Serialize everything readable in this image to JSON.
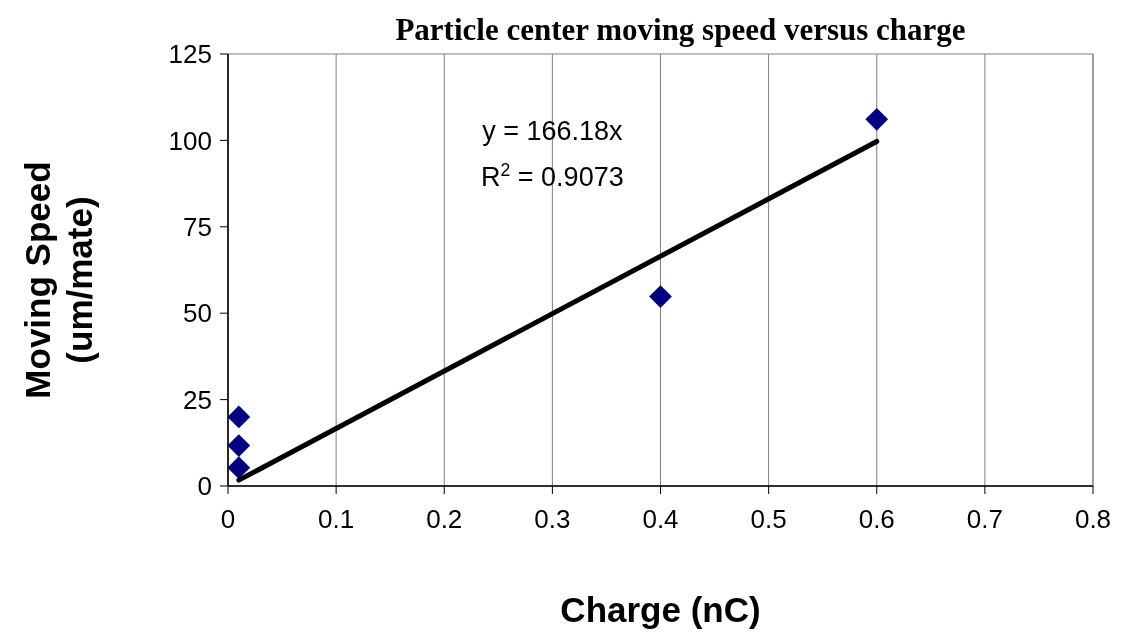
{
  "chart_data": {
    "type": "scatter",
    "title": "Particle center moving speed versus charge",
    "xlabel": "Charge (nC)",
    "ylabel": "Moving Speed\n(um/mate)",
    "series": [
      {
        "color": "#000080",
        "marker": "diamond",
        "x": [
          0.01,
          0.01,
          0.01,
          0.4,
          0.6
        ],
        "values": [
          20,
          11.7,
          5.3,
          54.8,
          106.1
        ]
      },
      {
        "type": "line",
        "color": "#000000",
        "marker": "none",
        "line_style": "solid",
        "x": [
          0.01,
          0.6
        ],
        "values": [
          1.7,
          99.7
        ]
      }
    ],
    "annotations": [
      "y = 166.18x",
      "R$^{2}$ = 0.9073"
    ],
    "xlim": [
      0,
      0.8
    ],
    "xticks": [
      0,
      0.1,
      0.2,
      0.3,
      0.4,
      0.5,
      0.6,
      0.7,
      0.8
    ],
    "ylim": [
      0,
      125
    ],
    "yticks": [
      0,
      25,
      50,
      75,
      100,
      125
    ],
    "grid": "x"
  }
}
